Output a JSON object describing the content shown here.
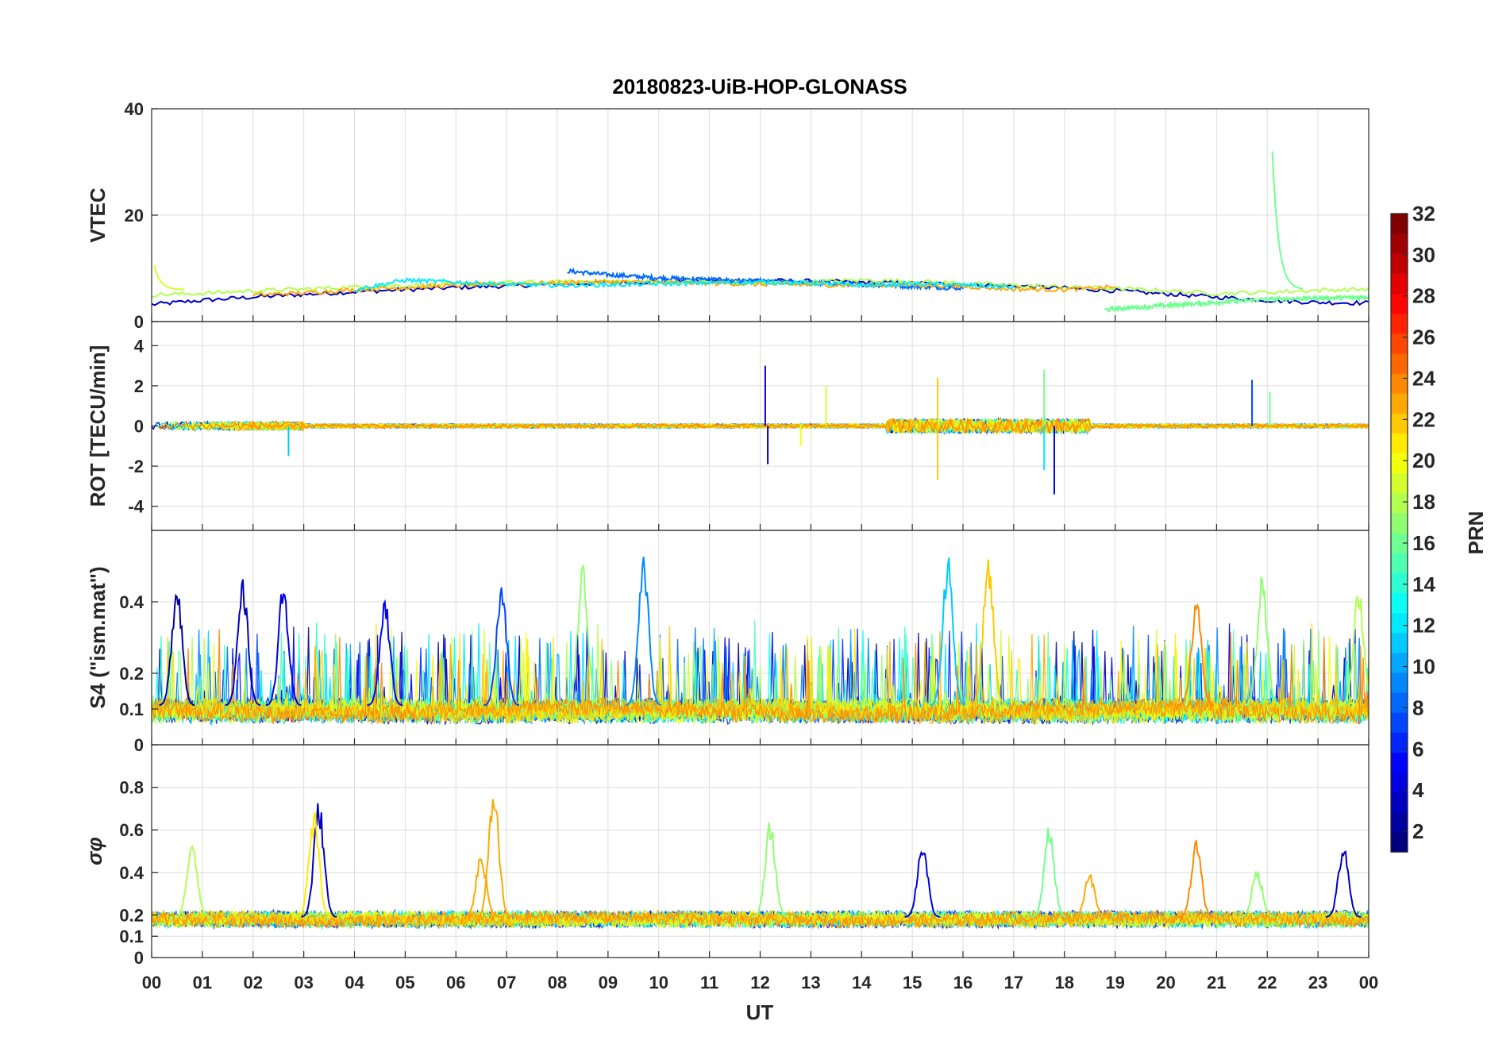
{
  "chart_data": {
    "type": "line",
    "title": "20180823-UiB-HOP-GLONASS",
    "xlabel": "UT",
    "x_ticks": [
      "00",
      "01",
      "02",
      "03",
      "04",
      "05",
      "06",
      "07",
      "08",
      "09",
      "10",
      "11",
      "12",
      "13",
      "14",
      "15",
      "16",
      "17",
      "18",
      "19",
      "20",
      "21",
      "22",
      "23",
      "00"
    ],
    "grid": true,
    "colorbar": {
      "label": "PRN",
      "colormap": "jet",
      "range": [
        1,
        32
      ],
      "ticks": [
        2,
        4,
        6,
        8,
        10,
        12,
        14,
        16,
        18,
        20,
        22,
        24,
        26,
        28,
        30,
        32
      ]
    },
    "panels": [
      {
        "id": "vtec",
        "ylabel": "VTEC",
        "ylim": [
          0,
          40
        ],
        "yticks": [
          0,
          20,
          40
        ],
        "series_levels": [
          {
            "prn": 3,
            "t": [
              0,
              1,
              2,
              3,
              4,
              5,
              6,
              7,
              8,
              9,
              10,
              11,
              12,
              13,
              14,
              15,
              16,
              17,
              18,
              19,
              20,
              21,
              22,
              23,
              24
            ],
            "v": [
              3.2,
              4.0,
              4.6,
              5.1,
              5.6,
              6.0,
              6.4,
              6.7,
              7.0,
              7.3,
              7.5,
              7.6,
              7.7,
              7.6,
              7.4,
              7.2,
              7.0,
              6.7,
              6.3,
              5.8,
              5.2,
              4.6,
              4.0,
              3.6,
              3.5
            ]
          },
          {
            "prn": 8,
            "t": [
              8.2,
              9,
              10,
              11,
              12,
              13,
              14,
              15,
              16
            ],
            "v": [
              9.5,
              8.8,
              8.2,
              7.9,
              7.6,
              7.3,
              7.0,
              6.6,
              6.3
            ]
          },
          {
            "prn": 18,
            "t": [
              0,
              1,
              2,
              3,
              4,
              5,
              6,
              7,
              8,
              9,
              10,
              11,
              12,
              13,
              14,
              15,
              16,
              17,
              18,
              19,
              20,
              21,
              22,
              23,
              24
            ],
            "v": [
              5.0,
              5.3,
              5.8,
              6.1,
              6.5,
              6.8,
              7.0,
              7.3,
              7.4,
              7.6,
              7.5,
              7.4,
              7.2,
              7.5,
              7.8,
              7.6,
              7.2,
              6.8,
              6.5,
              6.2,
              5.8,
              5.3,
              5.5,
              5.9,
              6.1
            ]
          },
          {
            "prn": 23,
            "t": [
              2,
              3,
              4,
              5,
              6,
              7,
              8,
              9,
              10,
              11,
              12,
              13,
              14,
              15,
              16,
              17,
              18,
              19
            ],
            "v": [
              5.0,
              5.4,
              6.0,
              6.4,
              6.8,
              7.1,
              7.3,
              7.5,
              7.3,
              7.2,
              7.0,
              6.9,
              6.8,
              6.9,
              6.6,
              6.1,
              6.0,
              6.5
            ]
          },
          {
            "prn": 16,
            "t": [
              18.8,
              19,
              20,
              21,
              22,
              23,
              24
            ],
            "v": [
              2.2,
              2.4,
              3.0,
              3.6,
              4.2,
              4.4,
              4.6
            ]
          },
          {
            "prn": 12,
            "t": [
              4,
              5,
              6,
              7,
              8,
              9,
              10,
              11,
              12,
              13,
              14,
              15,
              16,
              17
            ],
            "v": [
              6.0,
              7.8,
              7.4,
              7.0,
              6.8,
              6.9,
              7.1,
              7.3,
              7.4,
              7.2,
              6.8,
              7.1,
              6.9,
              6.4
            ]
          }
        ],
        "spikes": [
          {
            "prn": 16,
            "t": 22.1,
            "v": 32
          },
          {
            "prn": 19,
            "t": 0.05,
            "v": 10.5
          }
        ]
      },
      {
        "id": "rot",
        "ylabel": "ROT [TECU/min]",
        "ylim": [
          -5.2,
          5.2
        ],
        "yticks": [
          -4,
          -2,
          0,
          2,
          4
        ],
        "spikes": [
          {
            "prn": 3,
            "t": 12.1,
            "v": 3.0
          },
          {
            "prn": 3,
            "t": 12.15,
            "v": -1.9
          },
          {
            "prn": 19,
            "t": 13.3,
            "v": 2.0
          },
          {
            "prn": 20,
            "t": 12.8,
            "v": -1.0
          },
          {
            "prn": 22,
            "t": 15.5,
            "v": 2.4
          },
          {
            "prn": 22,
            "t": 15.5,
            "v": -2.7
          },
          {
            "prn": 16,
            "t": 17.6,
            "v": 2.8
          },
          {
            "prn": 12,
            "t": 17.6,
            "v": -2.2
          },
          {
            "prn": 4,
            "t": 17.8,
            "v": -3.4
          },
          {
            "prn": 7,
            "t": 21.7,
            "v": 2.3
          },
          {
            "prn": 16,
            "t": 22.05,
            "v": 1.7
          },
          {
            "prn": 11,
            "t": 2.7,
            "v": -1.5
          }
        ]
      },
      {
        "id": "s4",
        "ylabel": "S4 (\"ism.mat\")",
        "ylim": [
          0,
          0.6
        ],
        "yticks": [
          0,
          0.1,
          0.2,
          0.4
        ],
        "peaks": [
          {
            "prn": 2,
            "t": 0.5,
            "v": 0.48
          },
          {
            "prn": 3,
            "t": 1.8,
            "v": 0.47
          },
          {
            "prn": 4,
            "t": 2.6,
            "v": 0.46
          },
          {
            "prn": 5,
            "t": 4.6,
            "v": 0.42
          },
          {
            "prn": 7,
            "t": 6.9,
            "v": 0.46
          },
          {
            "prn": 17,
            "t": 8.5,
            "v": 0.52
          },
          {
            "prn": 9,
            "t": 9.7,
            "v": 0.55
          },
          {
            "prn": 11,
            "t": 15.7,
            "v": 0.55
          },
          {
            "prn": 22,
            "t": 16.5,
            "v": 0.55
          },
          {
            "prn": 24,
            "t": 20.6,
            "v": 0.42
          },
          {
            "prn": 17,
            "t": 21.9,
            "v": 0.48
          },
          {
            "prn": 18,
            "t": 23.8,
            "v": 0.46
          }
        ]
      },
      {
        "id": "sigma_phi",
        "ylabel": "σφ",
        "ylim": [
          0,
          1.0
        ],
        "yticks": [
          0,
          0.1,
          0.2,
          0.4,
          0.6,
          0.8
        ],
        "peaks": [
          {
            "prn": 18,
            "t": 0.8,
            "v": 0.58
          },
          {
            "prn": 3,
            "t": 3.3,
            "v": 0.75
          },
          {
            "prn": 21,
            "t": 3.2,
            "v": 0.7
          },
          {
            "prn": 23,
            "t": 6.5,
            "v": 0.5
          },
          {
            "prn": 23,
            "t": 6.75,
            "v": 0.82
          },
          {
            "prn": 17,
            "t": 12.2,
            "v": 0.65
          },
          {
            "prn": 4,
            "t": 15.2,
            "v": 0.56
          },
          {
            "prn": 16,
            "t": 17.7,
            "v": 0.62
          },
          {
            "prn": 23,
            "t": 18.5,
            "v": 0.4
          },
          {
            "prn": 24,
            "t": 20.6,
            "v": 0.56
          },
          {
            "prn": 17,
            "t": 21.8,
            "v": 0.42
          },
          {
            "prn": 3,
            "t": 23.5,
            "v": 0.54
          }
        ],
        "baseline": 0.15
      }
    ]
  }
}
